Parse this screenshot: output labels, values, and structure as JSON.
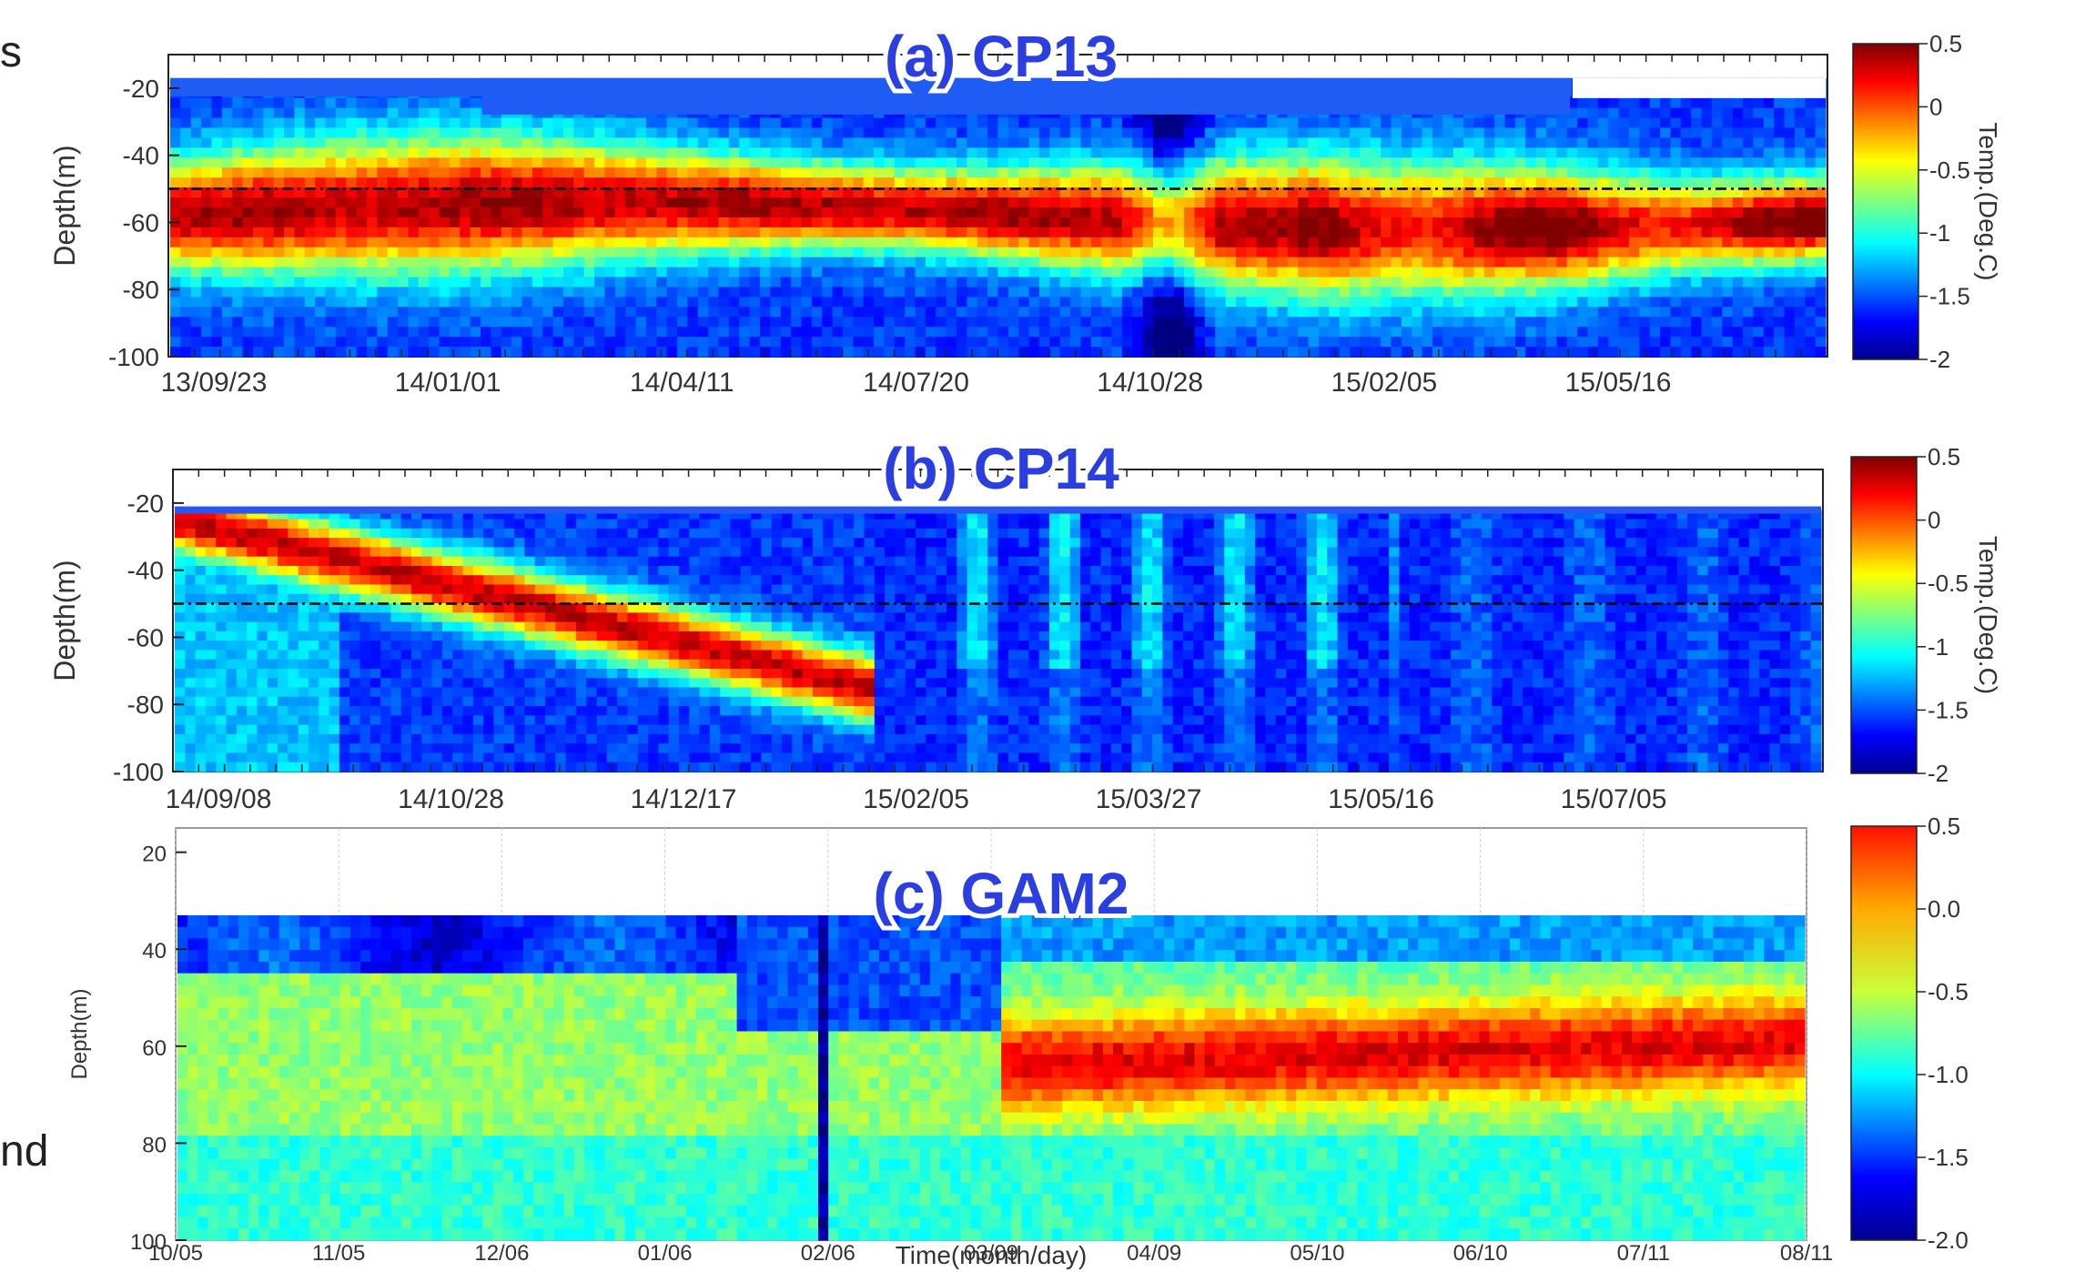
{
  "page": {
    "left_fragment_top": "s",
    "left_fragment_bottom": "nd"
  },
  "colors": {
    "title_fill": "#2b3fe0",
    "title_halo": "#ffffff",
    "dashed_line": "#000000"
  },
  "chart_data": [
    {
      "type": "heatmap",
      "title": "(a) CP13",
      "ylabel": "Depth(m)",
      "yticks": [
        "-20",
        "-40",
        "-60",
        "-80",
        "-100"
      ],
      "ylim": [
        -100,
        -10
      ],
      "x_ticks": [
        "13/09/23",
        "14/01/01",
        "14/04/11",
        "14/07/20",
        "14/10/28",
        "15/02/05",
        "15/05/16"
      ],
      "reference_depth": -50,
      "colorbar": {
        "label": "Temp.(Deg.C)",
        "range": [
          -2,
          0.5
        ],
        "ticks": [
          "0.5",
          "0",
          "-0.5",
          "-1",
          "-1.5",
          "-2"
        ]
      }
    },
    {
      "type": "heatmap",
      "title": "(b) CP14",
      "ylabel": "Depth(m)",
      "yticks": [
        "-20",
        "-40",
        "-60",
        "-80",
        "-100"
      ],
      "ylim": [
        -100,
        -10
      ],
      "x_ticks": [
        "14/09/08",
        "14/10/28",
        "14/12/17",
        "15/02/05",
        "15/03/27",
        "15/05/16",
        "15/07/05"
      ],
      "reference_depth": -50,
      "colorbar": {
        "label": "Temp.(Deg.C)",
        "range": [
          -2,
          0.5
        ],
        "ticks": [
          "0.5",
          "0",
          "-0.5",
          "-1",
          "-1.5",
          "-2"
        ]
      }
    },
    {
      "type": "heatmap",
      "title": "(c) GAM2",
      "ylabel": "Depth(m)",
      "xlabel": "Time(month/day)",
      "yticks": [
        "20",
        "40",
        "60",
        "80",
        "100"
      ],
      "ylim": [
        100,
        15
      ],
      "x_ticks": [
        "10/05",
        "11/05",
        "12/06",
        "01/06",
        "02/06",
        "03/09",
        "04/09",
        "05/10",
        "06/10",
        "07/11",
        "08/11"
      ],
      "grid": true,
      "colorbar": {
        "range": [
          -2.0,
          0.5
        ],
        "ticks": [
          "0.5",
          "0.0",
          "-0.5",
          "-1.0",
          "-1.5",
          "-2.0"
        ]
      }
    }
  ]
}
